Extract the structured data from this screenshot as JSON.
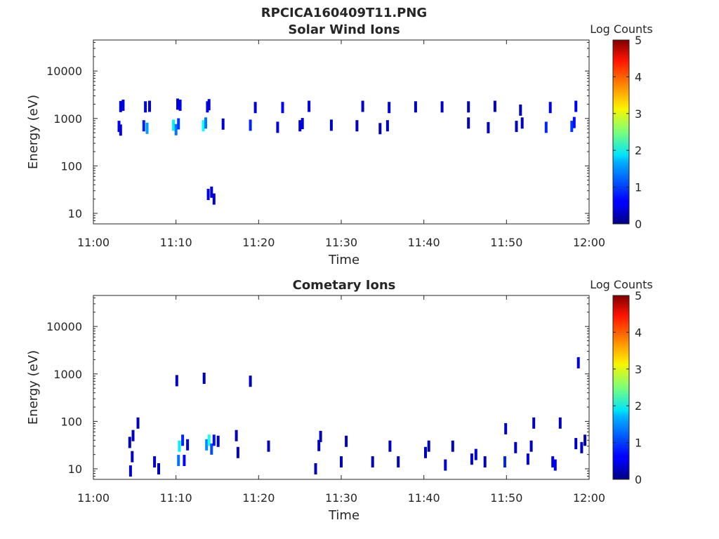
{
  "figure": {
    "title": "RPCICA160409T11.PNG"
  },
  "chart_data": [
    {
      "type": "heatmap",
      "title": "Solar Wind Ions",
      "xlabel": "Time",
      "ylabel": "Energy (eV)",
      "yscale": "log",
      "xlim": [
        "11:00",
        "12:00"
      ],
      "ylim": [
        6,
        45000
      ],
      "xticks": [
        "11:00",
        "11:10",
        "11:20",
        "11:30",
        "11:40",
        "11:50",
        "12:00"
      ],
      "yticks": [
        "10",
        "100",
        "1000",
        "10000"
      ],
      "colorbar": {
        "label": "Log Counts",
        "ticks": [
          "0",
          "1",
          "2",
          "3",
          "4",
          "5"
        ],
        "range": [
          0,
          5
        ]
      },
      "points": [
        {
          "t": 3.3,
          "e": 1780,
          "c": 0.4
        },
        {
          "t": 3.6,
          "e": 1900,
          "c": 0.5
        },
        {
          "t": 3.1,
          "e": 680,
          "c": 0.6
        },
        {
          "t": 3.3,
          "e": 570,
          "c": 0.4
        },
        {
          "t": 6.3,
          "e": 1750,
          "c": 0.6
        },
        {
          "t": 6.8,
          "e": 1800,
          "c": 0.5
        },
        {
          "t": 6.1,
          "e": 700,
          "c": 0.8
        },
        {
          "t": 6.5,
          "e": 620,
          "c": 1.4
        },
        {
          "t": 9.7,
          "e": 720,
          "c": 1.8
        },
        {
          "t": 10.0,
          "e": 580,
          "c": 1.2
        },
        {
          "t": 10.3,
          "e": 770,
          "c": 0.9
        },
        {
          "t": 10.5,
          "e": 1900,
          "c": 0.6
        },
        {
          "t": 10.2,
          "e": 2000,
          "c": 0.4
        },
        {
          "t": 13.3,
          "e": 700,
          "c": 1.9
        },
        {
          "t": 13.6,
          "e": 800,
          "c": 1.2
        },
        {
          "t": 13.8,
          "e": 1750,
          "c": 0.6
        },
        {
          "t": 14.0,
          "e": 1950,
          "c": 0.4
        },
        {
          "t": 15.7,
          "e": 760,
          "c": 0.4
        },
        {
          "t": 19.0,
          "e": 720,
          "c": 0.8
        },
        {
          "t": 19.6,
          "e": 1700,
          "c": 0.4
        },
        {
          "t": 22.3,
          "e": 650,
          "c": 0.5
        },
        {
          "t": 22.9,
          "e": 1700,
          "c": 0.6
        },
        {
          "t": 25.0,
          "e": 700,
          "c": 0.4
        },
        {
          "t": 25.3,
          "e": 780,
          "c": 0.5
        },
        {
          "t": 26.1,
          "e": 1800,
          "c": 0.5
        },
        {
          "t": 28.8,
          "e": 720,
          "c": 0.3
        },
        {
          "t": 31.9,
          "e": 700,
          "c": 0.3
        },
        {
          "t": 32.6,
          "e": 1800,
          "c": 0.4
        },
        {
          "t": 34.7,
          "e": 610,
          "c": 0.3
        },
        {
          "t": 35.6,
          "e": 700,
          "c": 0.3
        },
        {
          "t": 35.8,
          "e": 1700,
          "c": 0.4
        },
        {
          "t": 39.0,
          "e": 1750,
          "c": 0.3
        },
        {
          "t": 42.2,
          "e": 1750,
          "c": 0.4
        },
        {
          "t": 45.4,
          "e": 800,
          "c": 0.3
        },
        {
          "t": 45.4,
          "e": 1750,
          "c": 0.3
        },
        {
          "t": 47.8,
          "e": 640,
          "c": 0.3
        },
        {
          "t": 48.6,
          "e": 1800,
          "c": 0.4
        },
        {
          "t": 51.2,
          "e": 680,
          "c": 0.3
        },
        {
          "t": 51.7,
          "e": 1500,
          "c": 0.3
        },
        {
          "t": 51.9,
          "e": 800,
          "c": 0.3
        },
        {
          "t": 54.8,
          "e": 650,
          "c": 0.8
        },
        {
          "t": 55.3,
          "e": 1700,
          "c": 0.5
        },
        {
          "t": 57.9,
          "e": 680,
          "c": 0.9
        },
        {
          "t": 58.2,
          "e": 820,
          "c": 0.7
        },
        {
          "t": 58.4,
          "e": 1800,
          "c": 0.6
        },
        {
          "t": 13.9,
          "e": 25,
          "c": 0.5
        },
        {
          "t": 14.3,
          "e": 28,
          "c": 0.4
        },
        {
          "t": 14.6,
          "e": 20,
          "c": 0.4
        }
      ]
    },
    {
      "type": "heatmap",
      "title": "Cometary Ions",
      "xlabel": "Time",
      "ylabel": "Energy (eV)",
      "yscale": "log",
      "xlim": [
        "11:00",
        "12:00"
      ],
      "ylim": [
        6,
        45000
      ],
      "xticks": [
        "11:00",
        "11:10",
        "11:20",
        "11:30",
        "11:40",
        "11:50",
        "12:00"
      ],
      "yticks": [
        "10",
        "100",
        "1000",
        "10000"
      ],
      "colorbar": {
        "label": "Log Counts",
        "ticks": [
          "0",
          "1",
          "2",
          "3",
          "4",
          "5"
        ],
        "range": [
          0,
          5
        ]
      },
      "points": [
        {
          "t": 4.5,
          "e": 9,
          "c": 0.4
        },
        {
          "t": 4.7,
          "e": 18,
          "c": 0.3
        },
        {
          "t": 4.4,
          "e": 36,
          "c": 0.3
        },
        {
          "t": 4.8,
          "e": 50,
          "c": 0.3
        },
        {
          "t": 5.4,
          "e": 92,
          "c": 0.3
        },
        {
          "t": 7.4,
          "e": 14,
          "c": 0.3
        },
        {
          "t": 7.9,
          "e": 10,
          "c": 0.3
        },
        {
          "t": 10.3,
          "e": 15,
          "c": 1.2
        },
        {
          "t": 10.4,
          "e": 30,
          "c": 1.8
        },
        {
          "t": 10.8,
          "e": 40,
          "c": 0.8
        },
        {
          "t": 11.0,
          "e": 15,
          "c": 0.6
        },
        {
          "t": 11.4,
          "e": 32,
          "c": 0.5
        },
        {
          "t": 10.1,
          "e": 720,
          "c": 0.3
        },
        {
          "t": 13.4,
          "e": 810,
          "c": 0.3
        },
        {
          "t": 13.7,
          "e": 32,
          "c": 1.3
        },
        {
          "t": 14.0,
          "e": 40,
          "c": 2.0
        },
        {
          "t": 14.3,
          "e": 26,
          "c": 1.0
        },
        {
          "t": 14.6,
          "e": 40,
          "c": 0.7
        },
        {
          "t": 15.1,
          "e": 38,
          "c": 0.4
        },
        {
          "t": 17.3,
          "e": 50,
          "c": 0.3
        },
        {
          "t": 17.5,
          "e": 22,
          "c": 0.4
        },
        {
          "t": 19.0,
          "e": 700,
          "c": 0.3
        },
        {
          "t": 21.2,
          "e": 30,
          "c": 0.3
        },
        {
          "t": 26.9,
          "e": 10,
          "c": 0.3
        },
        {
          "t": 27.5,
          "e": 48,
          "c": 0.3
        },
        {
          "t": 27.3,
          "e": 31,
          "c": 0.3
        },
        {
          "t": 30.0,
          "e": 14,
          "c": 0.3
        },
        {
          "t": 30.6,
          "e": 38,
          "c": 0.3
        },
        {
          "t": 33.8,
          "e": 14,
          "c": 0.3
        },
        {
          "t": 35.9,
          "e": 30,
          "c": 0.3
        },
        {
          "t": 36.9,
          "e": 14,
          "c": 0.3
        },
        {
          "t": 40.2,
          "e": 22,
          "c": 0.3
        },
        {
          "t": 40.6,
          "e": 30,
          "c": 0.3
        },
        {
          "t": 42.6,
          "e": 12,
          "c": 0.4
        },
        {
          "t": 43.5,
          "e": 30,
          "c": 0.3
        },
        {
          "t": 45.8,
          "e": 16,
          "c": 0.3
        },
        {
          "t": 46.3,
          "e": 20,
          "c": 0.4
        },
        {
          "t": 47.4,
          "e": 14,
          "c": 0.3
        },
        {
          "t": 49.8,
          "e": 14,
          "c": 0.8
        },
        {
          "t": 49.9,
          "e": 70,
          "c": 0.3
        },
        {
          "t": 51.1,
          "e": 28,
          "c": 0.3
        },
        {
          "t": 52.6,
          "e": 16,
          "c": 0.4
        },
        {
          "t": 53.0,
          "e": 30,
          "c": 0.3
        },
        {
          "t": 53.3,
          "e": 92,
          "c": 0.3
        },
        {
          "t": 55.6,
          "e": 14,
          "c": 0.5
        },
        {
          "t": 55.9,
          "e": 12,
          "c": 0.6
        },
        {
          "t": 56.5,
          "e": 92,
          "c": 0.3
        },
        {
          "t": 58.4,
          "e": 34,
          "c": 0.3
        },
        {
          "t": 58.7,
          "e": 1720,
          "c": 0.4
        },
        {
          "t": 59.1,
          "e": 28,
          "c": 0.3
        },
        {
          "t": 59.5,
          "e": 40,
          "c": 0.3
        }
      ]
    }
  ]
}
